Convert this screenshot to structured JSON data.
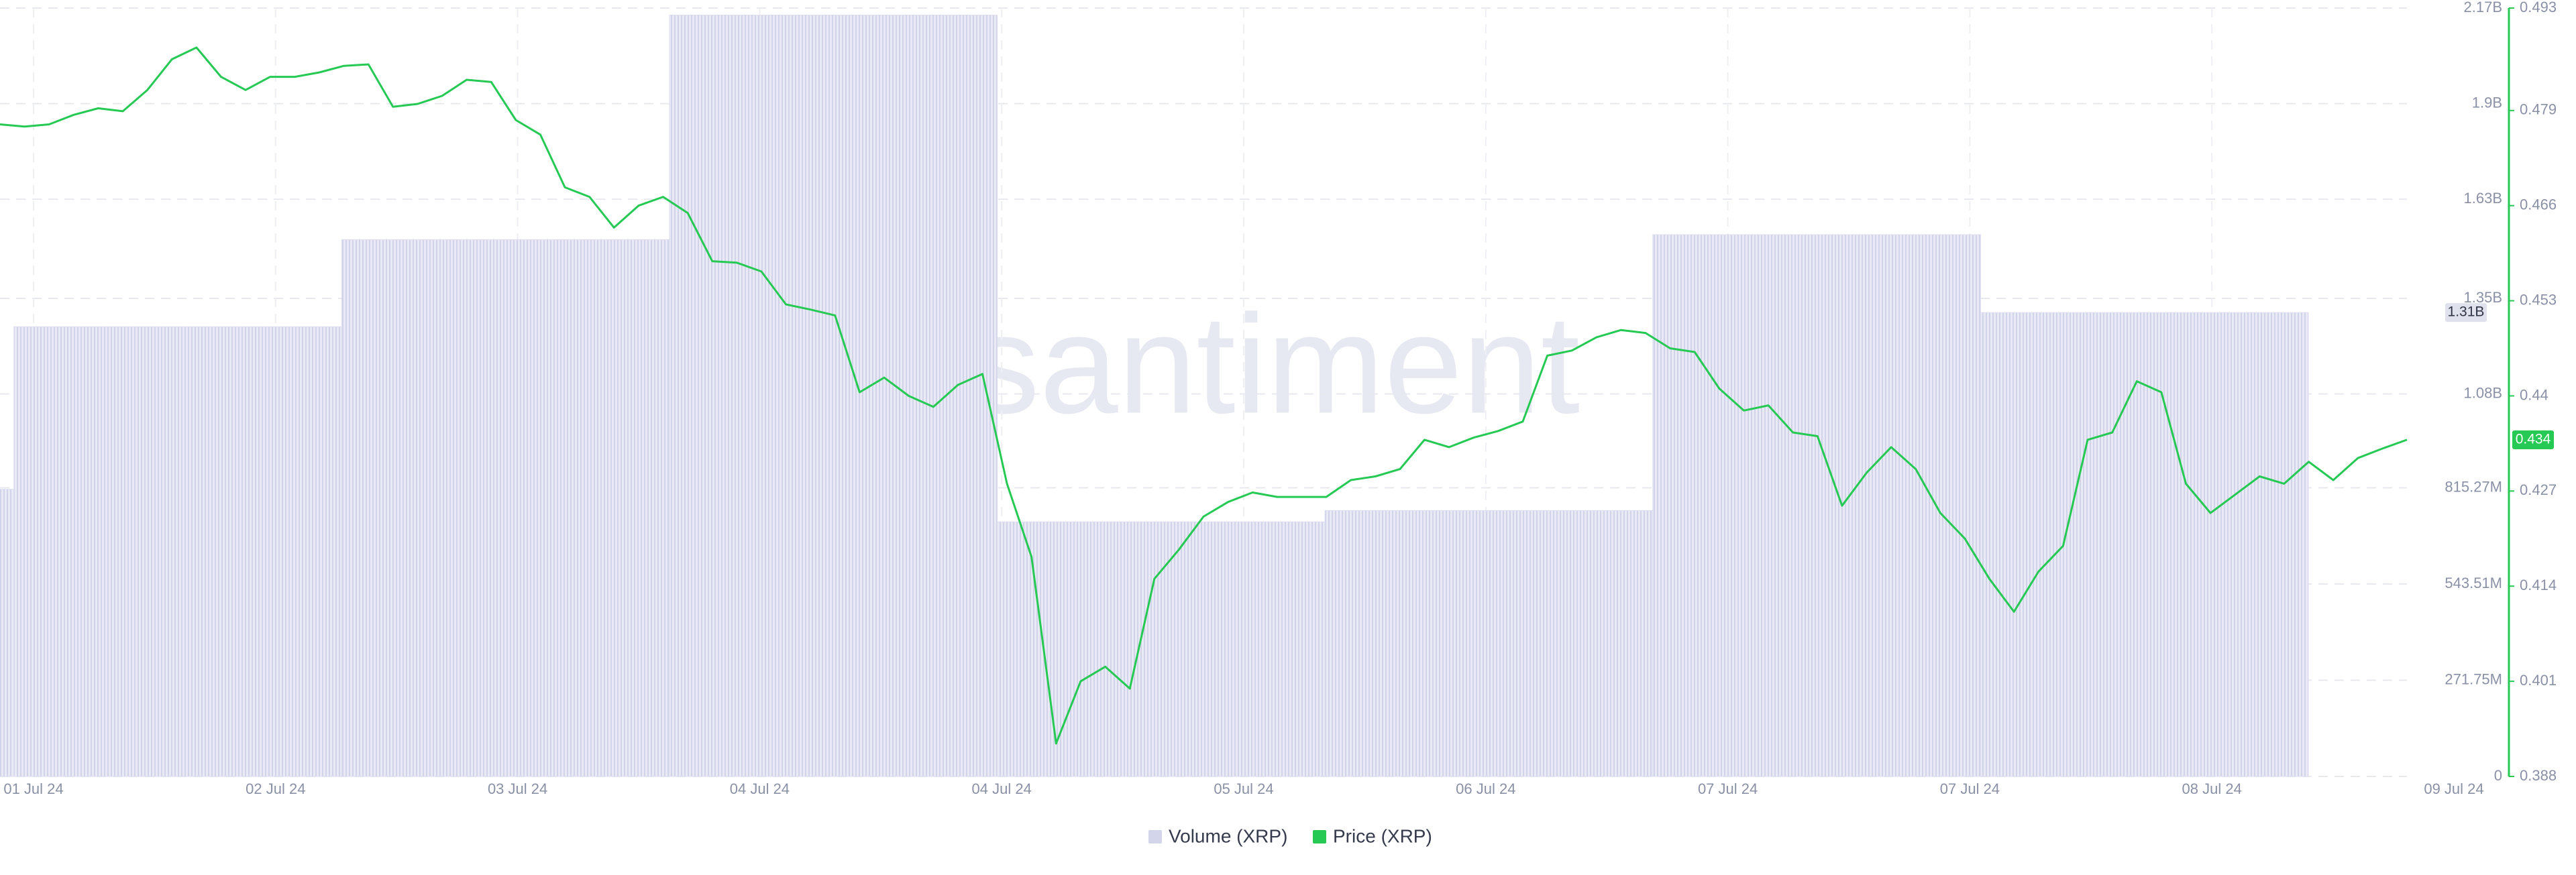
{
  "chart_data": {
    "type": "combo",
    "watermark": "santiment",
    "grid": true,
    "xticks": [
      "01 Jul 24",
      "02 Jul 24",
      "03 Jul 24",
      "04 Jul 24",
      "04 Jul 24",
      "05 Jul 24",
      "06 Jul 24",
      "07 Jul 24",
      "07 Jul 24",
      "08 Jul 24",
      "09 Jul 24"
    ],
    "ylim": [
      0,
      2170000000
    ],
    "yticks": [
      0,
      {
        "value": 271750000,
        "label": "271.75M"
      },
      {
        "value": 543510000,
        "label": "543.51M"
      },
      {
        "value": 815270000,
        "label": "815.27M"
      },
      {
        "value": 1080000000,
        "label": "1.08B"
      },
      {
        "value": 1350000000,
        "label": "1.35B"
      },
      {
        "value": 1630000000,
        "label": "1.63B"
      },
      {
        "value": 1900000000,
        "label": "1.9B"
      },
      {
        "value": 2170000000,
        "label": "2.17B"
      }
    ],
    "y2lim": [
      0.388,
      0.493
    ],
    "y2ticks": [
      0.388,
      0.401,
      0.414,
      0.427,
      0.44,
      0.453,
      0.466,
      0.479,
      0.493
    ],
    "series": [
      {
        "name": "Volume (XRP)",
        "type": "bar",
        "color": "#dcdef0",
        "values": [
          811000000,
          1270000000,
          1516000000,
          2150000000,
          719000000,
          751000000,
          1530000000,
          1310000000
        ],
        "last_label": "1.31B"
      },
      {
        "name": "Price (XRP)",
        "type": "line",
        "axis": "y2",
        "color": "#26c953",
        "values": [
          0.4771,
          0.4768,
          0.4771,
          0.4784,
          0.4793,
          0.4789,
          0.4818,
          0.486,
          0.4876,
          0.4836,
          0.4818,
          0.4836,
          0.4836,
          0.4842,
          0.4851,
          0.4853,
          0.4795,
          0.4799,
          0.481,
          0.4832,
          0.4829,
          0.4777,
          0.4757,
          0.4685,
          0.4672,
          0.463,
          0.466,
          0.4672,
          0.465,
          0.4584,
          0.4582,
          0.457,
          0.4525,
          0.4518,
          0.451,
          0.4405,
          0.4425,
          0.44,
          0.4385,
          0.4415,
          0.443,
          0.428,
          0.418,
          0.3925,
          0.401,
          0.403,
          0.4,
          0.415,
          0.419,
          0.4235,
          0.4255,
          0.4268,
          0.4262,
          0.4262,
          0.4262,
          0.4285,
          0.429,
          0.43,
          0.434,
          0.433,
          0.4343,
          0.4352,
          0.4365,
          0.4455,
          0.4462,
          0.448,
          0.449,
          0.4486,
          0.4465,
          0.446,
          0.441,
          0.438,
          0.4387,
          0.435,
          0.4345,
          0.425,
          0.4295,
          0.433,
          0.43,
          0.424,
          0.4205,
          0.415,
          0.4105,
          0.416,
          0.4195,
          0.434,
          0.435,
          0.442,
          0.4405,
          0.428,
          0.424,
          0.4265,
          0.429,
          0.428,
          0.431,
          0.4285,
          0.4315,
          0.4328,
          0.434
        ],
        "last_label": "0.434"
      }
    ]
  }
}
